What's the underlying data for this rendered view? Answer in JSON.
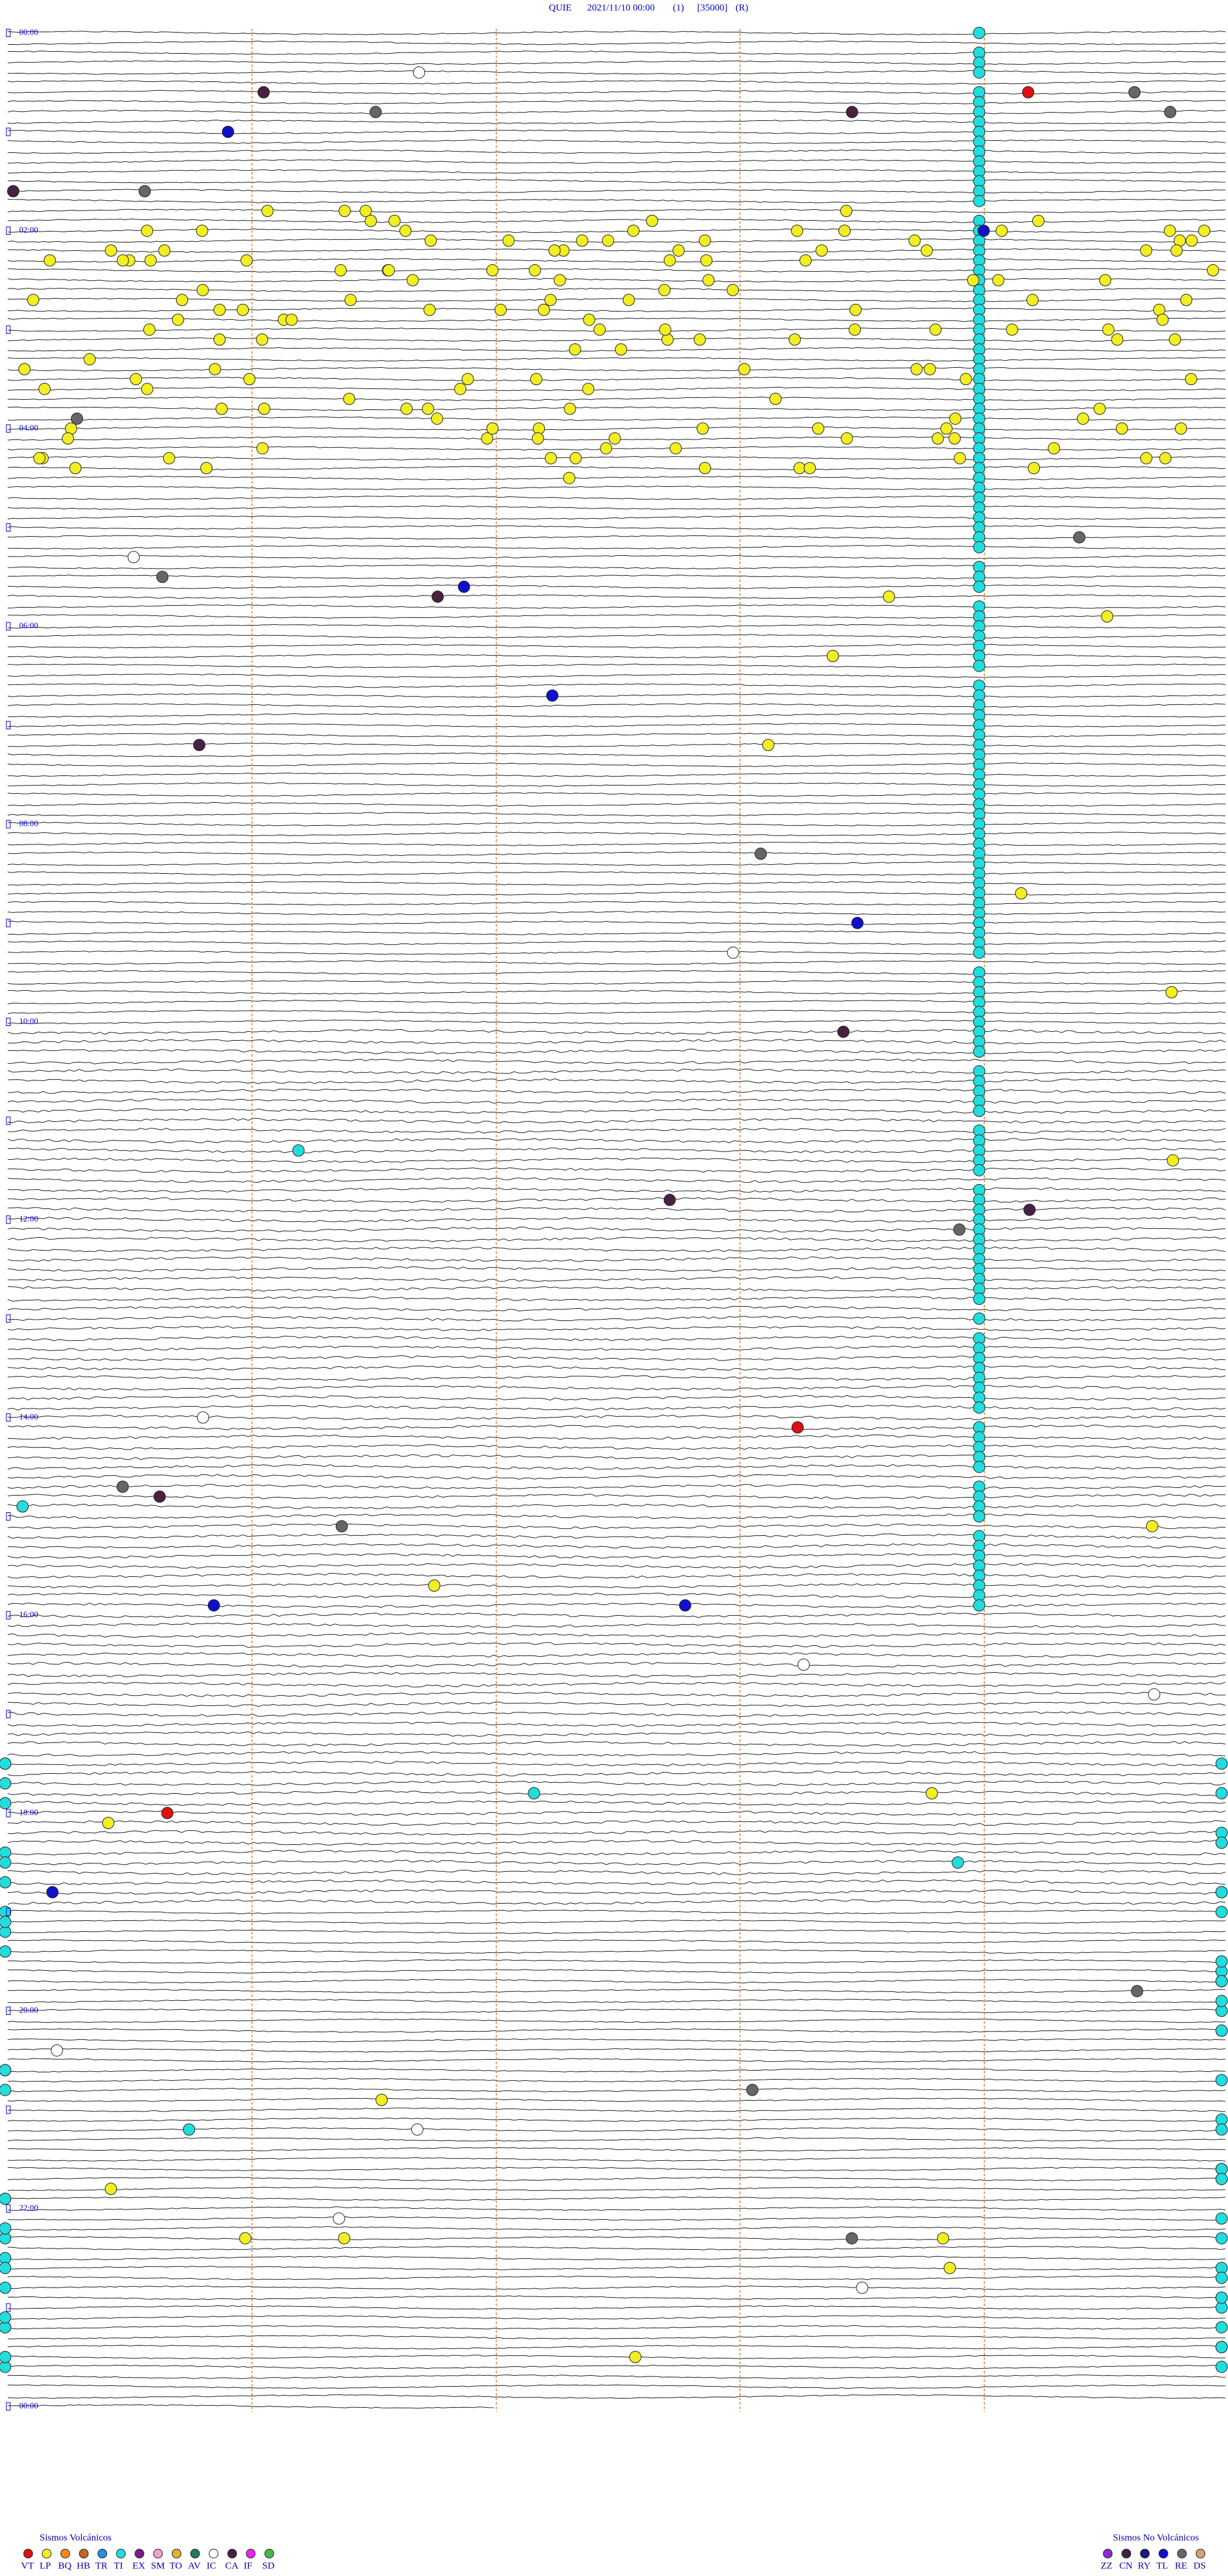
{
  "header": {
    "station": "QUIE",
    "datetime": "2021/11/10 00:00",
    "channel": "(1)",
    "scale": "[35000]",
    "mode": "(R)"
  },
  "time_labels": [
    "00:00",
    "02:00",
    "04:00",
    "06:00",
    "08:00",
    "10:00",
    "12:00",
    "14:00",
    "16:00",
    "18:00",
    "20:00",
    "22:00",
    "00:00"
  ],
  "legend": {
    "volcanic": {
      "title": "Sismos Volcánicos",
      "items": [
        "VT",
        "LP",
        "BQ",
        "HB",
        "TR",
        "TI",
        "EX",
        "SM",
        "TO",
        "AV",
        "IC",
        "CA",
        "IF",
        "SD"
      ]
    },
    "non_volcanic": {
      "title": "Sismos No Volcánicos",
      "items": [
        "ZZ",
        "CN",
        "RY",
        "TL",
        "RE",
        "DS"
      ]
    }
  }
}
